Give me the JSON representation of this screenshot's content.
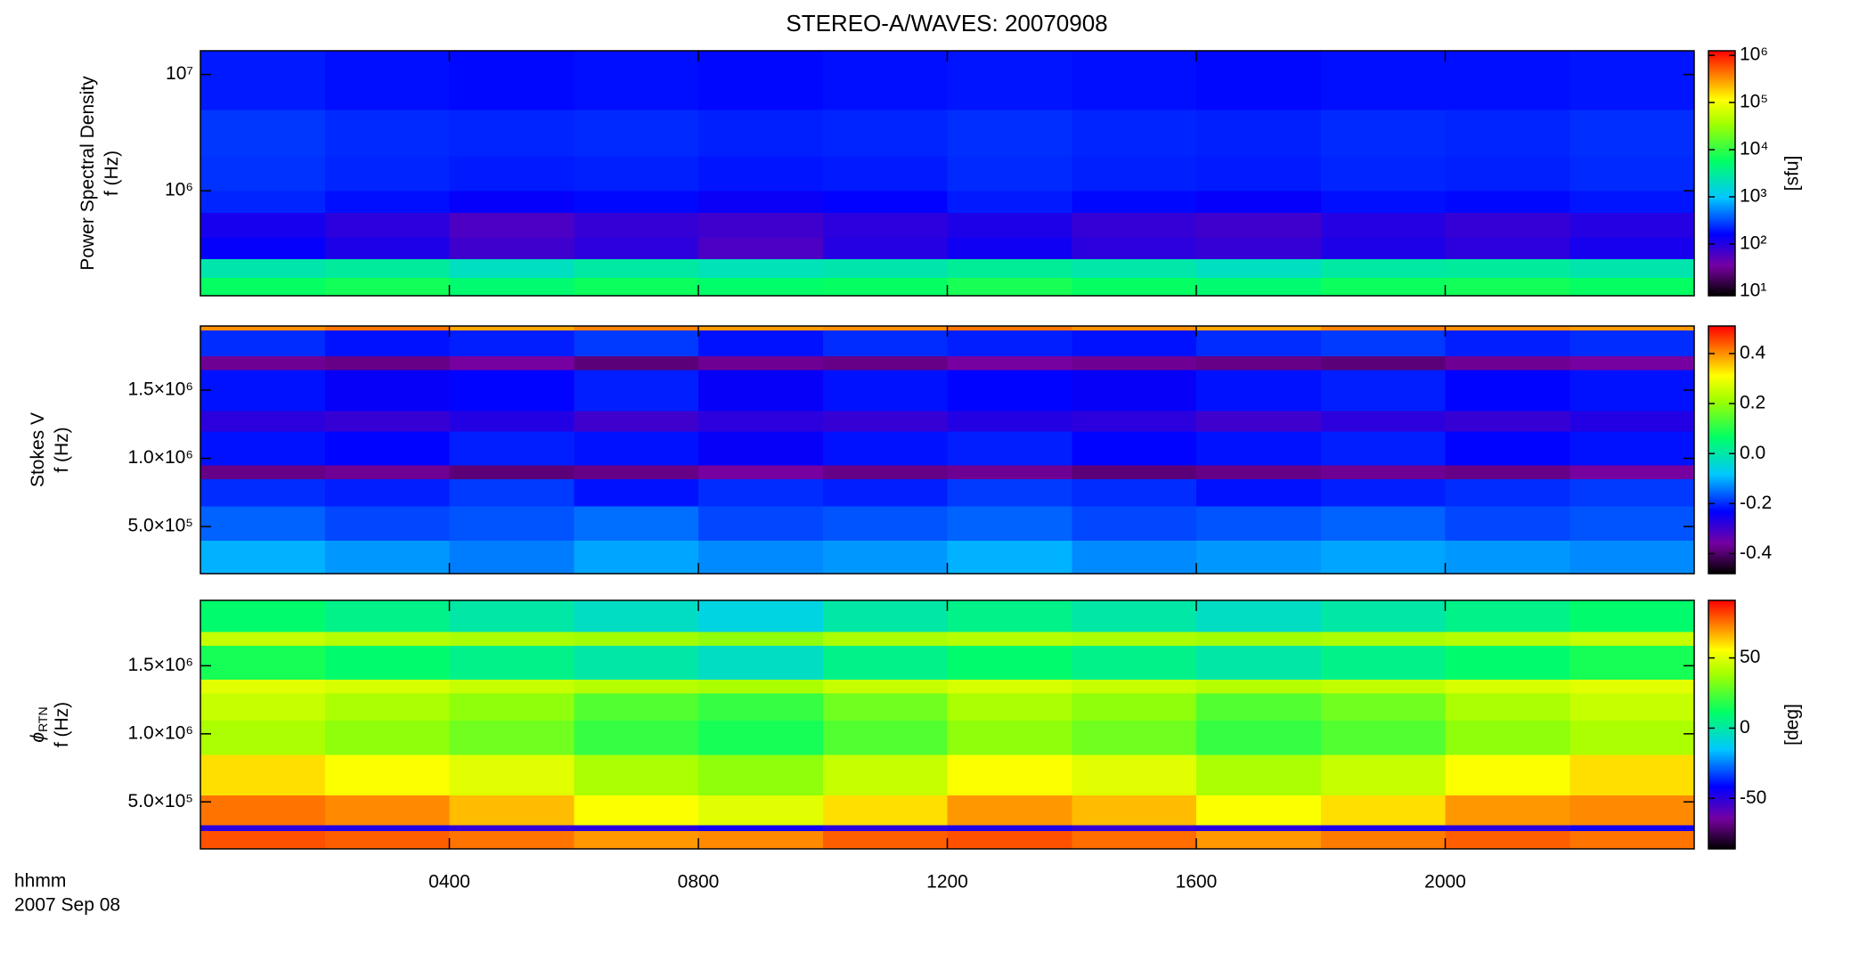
{
  "chart_data": [
    {
      "type": "heatmap",
      "title": "STEREO-A/WAVES: 20070908",
      "ylabel": [
        "Power Spectral Density",
        "f (Hz)"
      ],
      "x": [
        0,
        2,
        4,
        6,
        8,
        10,
        12,
        14,
        16,
        18,
        20,
        22,
        24
      ],
      "xlim": [
        0,
        24
      ],
      "y": [
        125000,
        180000,
        260000,
        400000,
        650000,
        1000000,
        2000000,
        5000000,
        16000000
      ],
      "ylim": [
        125000,
        16000000
      ],
      "ylog": true,
      "yticks": [
        {
          "value": 1000000,
          "label": "10⁶"
        },
        {
          "value": 10000000,
          "label": "10⁷"
        }
      ],
      "z": [
        [
          6000,
          7000,
          5000,
          6500,
          5500,
          6000,
          7500,
          6000,
          5000,
          6500,
          7000,
          6000
        ],
        [
          2500,
          3000,
          2000,
          2800,
          2200,
          2500,
          3200,
          2600,
          2000,
          2800,
          3000,
          2500
        ],
        [
          150,
          110,
          70,
          90,
          60,
          100,
          130,
          90,
          80,
          110,
          90,
          120
        ],
        [
          120,
          90,
          60,
          80,
          70,
          90,
          110,
          80,
          70,
          100,
          80,
          100
        ],
        [
          220,
          180,
          150,
          170,
          140,
          160,
          200,
          170,
          150,
          180,
          170,
          190
        ],
        [
          250,
          220,
          200,
          210,
          190,
          200,
          230,
          210,
          200,
          220,
          210,
          230
        ],
        [
          260,
          230,
          220,
          230,
          210,
          220,
          240,
          220,
          210,
          230,
          220,
          240
        ],
        [
          200,
          180,
          170,
          180,
          170,
          180,
          190,
          180,
          170,
          180,
          180,
          190
        ]
      ],
      "zlim": [
        8,
        1250000
      ],
      "zlog": true,
      "zticks": [
        {
          "value": 10,
          "label": "10¹"
        },
        {
          "value": 100,
          "label": "10²"
        },
        {
          "value": 1000,
          "label": "10³"
        },
        {
          "value": 10000,
          "label": "10⁴"
        },
        {
          "value": 100000,
          "label": "10⁵"
        },
        {
          "value": 1000000,
          "label": "10⁶"
        }
      ],
      "zlabel": "[sfu]"
    },
    {
      "type": "heatmap",
      "ylabel": [
        "Stokes V",
        "f (Hz)"
      ],
      "x": [
        0,
        2,
        4,
        6,
        8,
        10,
        12,
        14,
        16,
        18,
        20,
        22,
        24
      ],
      "xlim": [
        0,
        24
      ],
      "y": [
        155000,
        400000,
        650000,
        850000,
        950000,
        1200000,
        1350000,
        1650000,
        1750000,
        1940000,
        1970000
      ],
      "ylim": [
        155000,
        1970000
      ],
      "ylog": false,
      "yticks": [
        {
          "value": 500000,
          "label": "5.0×10⁵"
        },
        {
          "value": 1000000,
          "label": "1.0×10⁶"
        },
        {
          "value": 1500000,
          "label": "1.5×10⁶"
        }
      ],
      "z": [
        [
          -0.1,
          -0.12,
          -0.14,
          -0.11,
          -0.13,
          -0.12,
          -0.1,
          -0.13,
          -0.12,
          -0.11,
          -0.12,
          -0.13
        ],
        [
          -0.16,
          -0.18,
          -0.17,
          -0.15,
          -0.18,
          -0.17,
          -0.16,
          -0.18,
          -0.17,
          -0.16,
          -0.18,
          -0.17
        ],
        [
          -0.2,
          -0.21,
          -0.19,
          -0.22,
          -0.2,
          -0.21,
          -0.19,
          -0.2,
          -0.22,
          -0.21,
          -0.2,
          -0.19
        ],
        [
          -0.38,
          -0.37,
          -0.39,
          -0.38,
          -0.36,
          -0.38,
          -0.37,
          -0.39,
          -0.38,
          -0.37,
          -0.38,
          -0.36
        ],
        [
          -0.22,
          -0.23,
          -0.21,
          -0.22,
          -0.24,
          -0.22,
          -0.21,
          -0.23,
          -0.22,
          -0.21,
          -0.23,
          -0.22
        ],
        [
          -0.28,
          -0.29,
          -0.27,
          -0.3,
          -0.28,
          -0.29,
          -0.27,
          -0.28,
          -0.3,
          -0.28,
          -0.29,
          -0.27
        ],
        [
          -0.22,
          -0.24,
          -0.23,
          -0.21,
          -0.24,
          -0.22,
          -0.23,
          -0.24,
          -0.22,
          -0.21,
          -0.23,
          -0.22
        ],
        [
          -0.37,
          -0.38,
          -0.36,
          -0.39,
          -0.37,
          -0.38,
          -0.36,
          -0.37,
          -0.38,
          -0.39,
          -0.37,
          -0.36
        ],
        [
          -0.2,
          -0.22,
          -0.21,
          -0.19,
          -0.22,
          -0.2,
          -0.21,
          -0.22,
          -0.2,
          -0.19,
          -0.21,
          -0.2
        ],
        [
          0.4,
          0.42,
          0.38,
          0.41,
          0.39,
          0.4,
          0.42,
          0.4,
          0.38,
          0.41,
          0.4,
          0.39
        ]
      ],
      "zlim": [
        -0.48,
        0.51
      ],
      "zlog": false,
      "zticks": [
        -0.4,
        -0.2,
        {
          "value": 0,
          "label": "0.0"
        },
        0.2,
        0.4
      ]
    },
    {
      "type": "heatmap",
      "ylabel": [
        "ϕ",
        "f (Hz)"
      ],
      "ylabel_sub": "RTN",
      "x": [
        0,
        2,
        4,
        6,
        8,
        10,
        12,
        14,
        16,
        18,
        20,
        22,
        24
      ],
      "xlim": [
        0,
        24
      ],
      "xticks": [
        {
          "value": 4,
          "label": "0400"
        },
        {
          "value": 8,
          "label": "0800"
        },
        {
          "value": 12,
          "label": "1200"
        },
        {
          "value": 16,
          "label": "1600"
        },
        {
          "value": 20,
          "label": "2000"
        }
      ],
      "xlabel": [
        "hhmm",
        "2007 Sep 08"
      ],
      "y": [
        155000,
        290000,
        330000,
        550000,
        850000,
        1100000,
        1300000,
        1400000,
        1650000,
        1750000,
        1980000
      ],
      "ylim": [
        155000,
        1980000
      ],
      "ylog": false,
      "yticks": [
        {
          "value": 500000,
          "label": "5.0×10⁵"
        },
        {
          "value": 1000000,
          "label": "1.0×10⁶"
        },
        {
          "value": 1500000,
          "label": "1.5×10⁶"
        }
      ],
      "z": [
        [
          80,
          78,
          75,
          70,
          72,
          78,
          80,
          76,
          70,
          74,
          78,
          75
        ],
        [
          -50,
          -48,
          -52,
          -50,
          -45,
          -50,
          -48,
          -52,
          -50,
          -47,
          -50,
          -45
        ],
        [
          75,
          72,
          65,
          55,
          50,
          60,
          70,
          65,
          55,
          60,
          70,
          72
        ],
        [
          60,
          55,
          50,
          40,
          35,
          45,
          55,
          50,
          40,
          45,
          55,
          60
        ],
        [
          40,
          35,
          30,
          20,
          15,
          25,
          35,
          30,
          20,
          25,
          35,
          40
        ],
        [
          45,
          40,
          35,
          25,
          20,
          30,
          40,
          35,
          25,
          30,
          40,
          45
        ],
        [
          50,
          48,
          45,
          42,
          40,
          45,
          48,
          45,
          42,
          44,
          48,
          50
        ],
        [
          15,
          10,
          5,
          0,
          -5,
          5,
          10,
          5,
          0,
          5,
          10,
          15
        ],
        [
          45,
          42,
          40,
          38,
          35,
          40,
          42,
          40,
          38,
          40,
          42,
          45
        ],
        [
          10,
          5,
          0,
          -5,
          -10,
          0,
          5,
          0,
          -5,
          0,
          5,
          10
        ]
      ],
      "zlim": [
        -86,
        91
      ],
      "zlog": false,
      "zticks": [
        -50,
        0,
        50
      ],
      "zlabel": "[deg]"
    }
  ]
}
